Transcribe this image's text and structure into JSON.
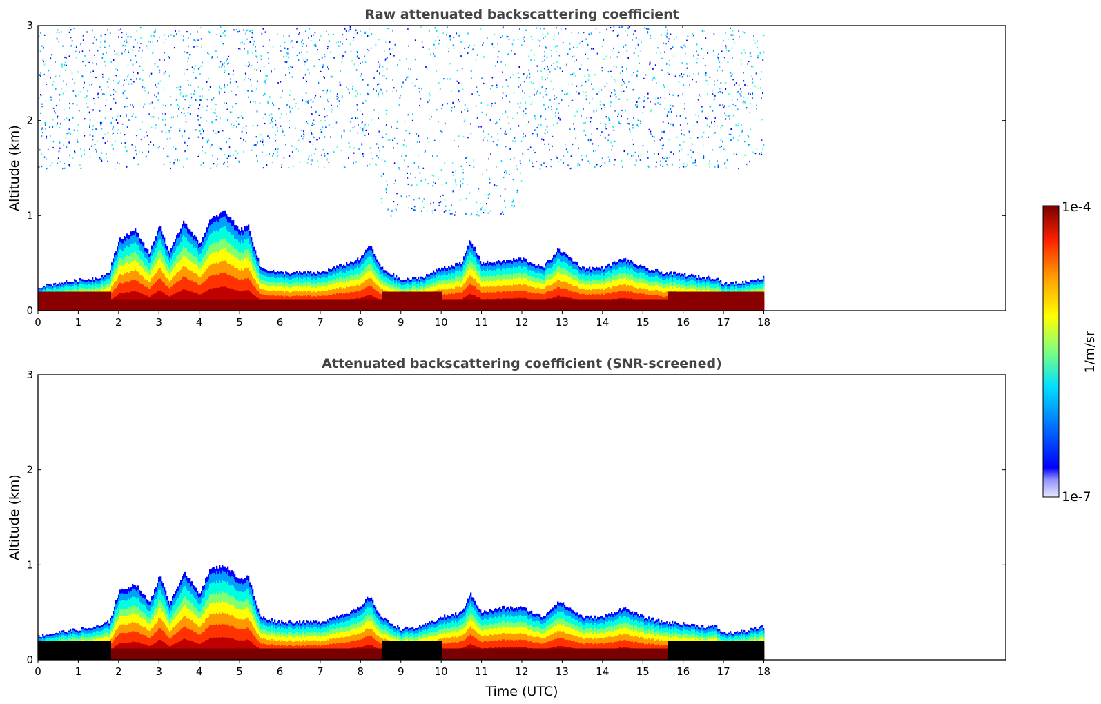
{
  "colors": {
    "colormap": [
      "#ffffff",
      "#0000ff",
      "#00a0ff",
      "#00ffff",
      "#7fff7f",
      "#ffff00",
      "#ff9900",
      "#ff2200",
      "#aa0000",
      "#5a0000"
    ],
    "screened_saturated": "#000000",
    "axes": "#000000",
    "title": "#444444"
  },
  "figure": {
    "xlabel": "Time (UTC)",
    "colorbar": {
      "label": "1/m/sr",
      "max_label": "1e-4",
      "min_label": "1e-7",
      "min": 1e-07,
      "max": 0.0001,
      "scale": "log"
    }
  },
  "panels": [
    {
      "title": "Raw attenuated backscattering coefficient",
      "ylabel": "Altitude (km)",
      "x_ticks": [
        "0",
        "1",
        "2",
        "3",
        "4",
        "5",
        "6",
        "7",
        "8",
        "9",
        "10",
        "11",
        "12",
        "13",
        "14",
        "15",
        "16",
        "17",
        "18"
      ],
      "y_ticks": [
        "0",
        "1",
        "2",
        "3"
      ]
    },
    {
      "title": "Attenuated backscattering coefficient (SNR-screened)",
      "ylabel": "Altitude (km)",
      "x_ticks": [
        "0",
        "1",
        "2",
        "3",
        "4",
        "5",
        "6",
        "7",
        "8",
        "9",
        "10",
        "11",
        "12",
        "13",
        "14",
        "15",
        "16",
        "17",
        "18"
      ],
      "y_ticks": [
        "0",
        "1",
        "2",
        "3"
      ]
    }
  ],
  "chart_data": [
    {
      "type": "heatmap",
      "title": "Raw attenuated backscattering coefficient",
      "xlabel": "",
      "ylabel": "Altitude (km)",
      "xlim": [
        0,
        24
      ],
      "ylim": [
        0,
        3
      ],
      "data_extent_x": [
        0,
        18
      ],
      "color_scale": "log",
      "color_range": [
        1e-07,
        0.0001
      ],
      "grid": false,
      "noise_above_layer": true,
      "layer_top_km": {
        "time_utc": [
          0,
          0.5,
          1,
          1.5,
          1.75,
          2,
          2.4,
          2.75,
          3,
          3.25,
          3.6,
          4,
          4.25,
          4.6,
          5,
          5.2,
          5.5,
          6,
          7,
          8,
          8.2,
          8.5,
          9,
          9.5,
          10,
          10.5,
          10.7,
          11,
          11.5,
          12,
          12.5,
          12.9,
          13.5,
          14,
          14.5,
          15,
          15.5,
          16,
          16.5,
          16.8,
          17,
          17.5,
          18
        ],
        "altitude_km": [
          0.25,
          0.29,
          0.32,
          0.35,
          0.4,
          0.75,
          0.85,
          0.6,
          0.9,
          0.6,
          0.95,
          0.7,
          0.95,
          1.05,
          0.85,
          0.9,
          0.45,
          0.4,
          0.4,
          0.55,
          0.7,
          0.45,
          0.32,
          0.35,
          0.45,
          0.5,
          0.75,
          0.5,
          0.52,
          0.55,
          0.45,
          0.65,
          0.45,
          0.45,
          0.55,
          0.45,
          0.4,
          0.38,
          0.35,
          0.35,
          0.28,
          0.3,
          0.35
        ]
      }
    },
    {
      "type": "heatmap",
      "title": "Attenuated backscattering coefficient (SNR-screened)",
      "xlabel": "Time (UTC)",
      "ylabel": "Altitude (km)",
      "xlim": [
        0,
        24
      ],
      "ylim": [
        0,
        3
      ],
      "data_extent_x": [
        0,
        18
      ],
      "color_scale": "log",
      "color_range": [
        1e-07,
        0.0001
      ],
      "grid": false,
      "noise_above_layer": false,
      "layer_top_km": {
        "time_utc": [
          0,
          0.5,
          1,
          1.5,
          1.75,
          2,
          2.4,
          2.75,
          3,
          3.25,
          3.6,
          4,
          4.25,
          4.6,
          5,
          5.2,
          5.5,
          6,
          7,
          8,
          8.2,
          8.5,
          9,
          9.5,
          10,
          10.5,
          10.7,
          11,
          11.5,
          12,
          12.5,
          12.9,
          13.5,
          14,
          14.5,
          15,
          15.5,
          16,
          16.5,
          16.8,
          17,
          17.5,
          18
        ],
        "altitude_km": [
          0.25,
          0.29,
          0.32,
          0.35,
          0.4,
          0.72,
          0.8,
          0.6,
          0.88,
          0.6,
          0.92,
          0.7,
          0.95,
          1.0,
          0.85,
          0.88,
          0.45,
          0.4,
          0.4,
          0.55,
          0.68,
          0.45,
          0.32,
          0.35,
          0.45,
          0.5,
          0.7,
          0.5,
          0.55,
          0.55,
          0.45,
          0.62,
          0.45,
          0.45,
          0.55,
          0.45,
          0.4,
          0.38,
          0.35,
          0.35,
          0.28,
          0.3,
          0.35
        ]
      }
    }
  ]
}
